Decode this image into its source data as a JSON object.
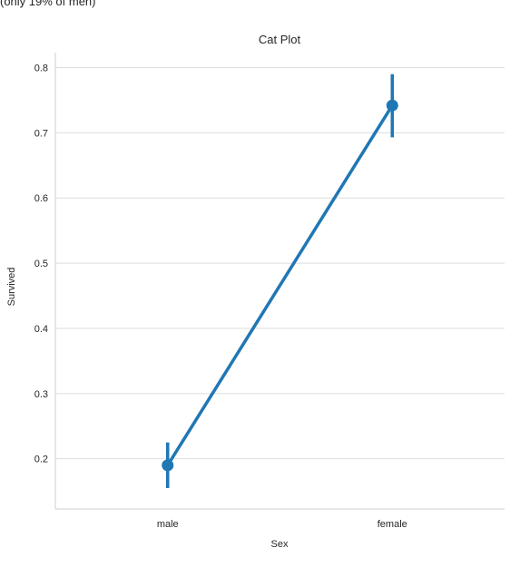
{
  "header_fragment": "(only 19% of men)",
  "chart_data": {
    "type": "line",
    "title": "Cat Plot",
    "xlabel": "Sex",
    "ylabel": "Survived",
    "categories": [
      "male",
      "female"
    ],
    "series": [
      {
        "values": [
          0.19,
          0.742
        ],
        "ci_low": [
          0.155,
          0.693
        ],
        "ci_high": [
          0.225,
          0.79
        ]
      }
    ],
    "ylim": [
      0.123,
      0.823
    ],
    "yticks": [
      0.2,
      0.3,
      0.4,
      0.5,
      0.6,
      0.7,
      0.8
    ],
    "grid": "horizontal",
    "color": "#1f77b4",
    "grid_color": "#dddddd",
    "spine_color": "#cccccc"
  }
}
